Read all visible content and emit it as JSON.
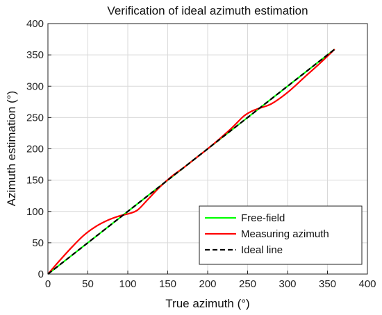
{
  "chart_data": {
    "type": "line",
    "title": "Verification of ideal azimuth estimation",
    "xlabel": "True azimuth (°)",
    "ylabel": "Azimuth estimation (°)",
    "xlim": [
      0,
      400
    ],
    "ylim": [
      0,
      400
    ],
    "xticks": [
      0,
      50,
      100,
      150,
      200,
      250,
      300,
      350,
      400
    ],
    "yticks": [
      0,
      50,
      100,
      150,
      200,
      250,
      300,
      350,
      400
    ],
    "grid": true,
    "legend_position": "bottom-right",
    "series": [
      {
        "name": "Free-field",
        "color": "#00ff00",
        "style": "solid",
        "x": [
          0,
          45,
          90,
          135,
          180,
          225,
          270,
          315,
          359
        ],
        "y": [
          0,
          45,
          90,
          135,
          180,
          225,
          270,
          315,
          359
        ]
      },
      {
        "name": "Measuring azimuth",
        "color": "#ff0000",
        "style": "solid",
        "x": [
          0,
          15,
          30,
          45,
          60,
          75,
          90,
          100,
          112,
          125,
          140,
          155,
          170,
          185,
          200,
          215,
          230,
          245,
          255,
          265,
          280,
          300,
          320,
          340,
          359
        ],
        "y": [
          0,
          22,
          43,
          62,
          76,
          86,
          93,
          96,
          102,
          119,
          139,
          156,
          170,
          185,
          200,
          216,
          233,
          252,
          260,
          265,
          272,
          290,
          313,
          336,
          359
        ]
      },
      {
        "name": "Ideal line",
        "color": "#000000",
        "style": "dashed",
        "x": [
          0,
          359
        ],
        "y": [
          0,
          359
        ]
      }
    ]
  }
}
